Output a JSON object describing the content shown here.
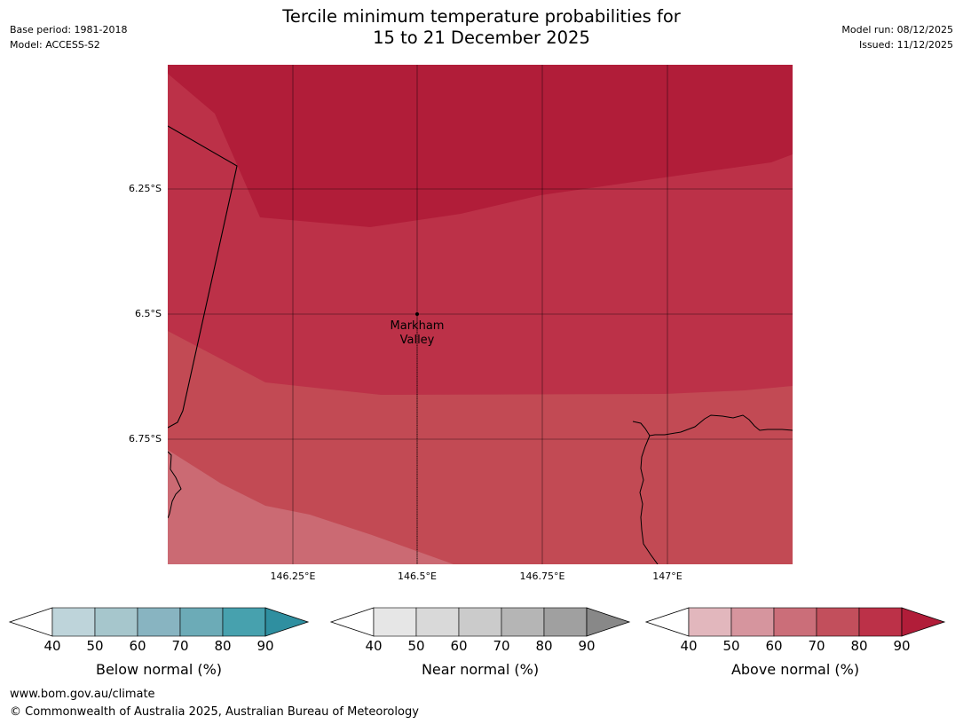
{
  "title": {
    "line1": "Tercile minimum temperature probabilities for",
    "line2": "15 to 21 December 2025"
  },
  "meta": {
    "base_period": "Base period: 1981-2018",
    "model": "Model: ACCESS-S2",
    "model_run": "Model run: 08/12/2025",
    "issued": "Issued: 11/12/2025"
  },
  "map": {
    "lat_labels": [
      "6.25°S",
      "6.5°S",
      "6.75°S"
    ],
    "lon_labels": [
      "146.25°E",
      "146.5°E",
      "146.75°E",
      "147°E"
    ],
    "location": {
      "name_line1": "Markham",
      "name_line2": "Valley"
    },
    "fill_colors": {
      "above_90": "#b11d39",
      "above_80": "#bc3148",
      "above_70": "#c24a54",
      "above_60": "#cb6a73"
    }
  },
  "colorbars": [
    {
      "title": "Below normal (%)",
      "ticks": [
        "40",
        "50",
        "60",
        "70",
        "80",
        "90"
      ],
      "colors": [
        "#bed4da",
        "#a6c6cc",
        "#88b4c1",
        "#6cabb7",
        "#47a1ae",
        "#2f8fa0"
      ]
    },
    {
      "title": "Near normal (%)",
      "ticks": [
        "40",
        "50",
        "60",
        "70",
        "80",
        "90"
      ],
      "colors": [
        "#e6e6e6",
        "#d9d9d9",
        "#cbcbcb",
        "#b5b5b5",
        "#a0a0a0",
        "#888888"
      ]
    },
    {
      "title": "Above normal (%)",
      "ticks": [
        "40",
        "50",
        "60",
        "70",
        "80",
        "90"
      ],
      "colors": [
        "#e2b7bd",
        "#d6959e",
        "#cb6e79",
        "#c24f5c",
        "#bc3148",
        "#b11d39"
      ]
    }
  ],
  "footer": {
    "url": "www.bom.gov.au/climate",
    "copyright": "© Commonwealth of Australia 2025, Australian Bureau of Meteorology"
  }
}
